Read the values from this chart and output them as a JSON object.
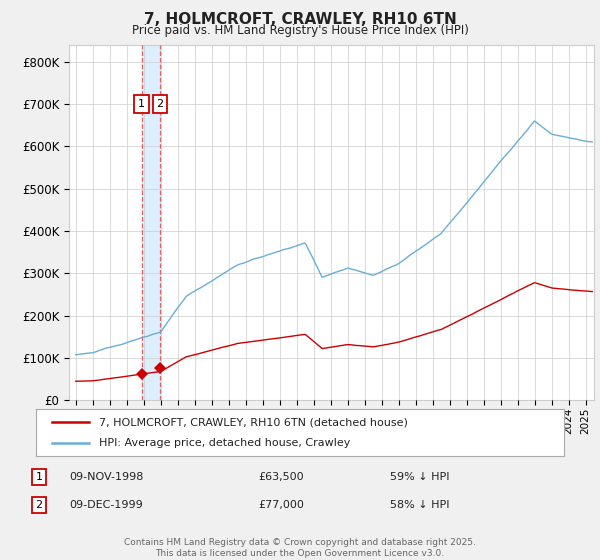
{
  "title": "7, HOLMCROFT, CRAWLEY, RH10 6TN",
  "subtitle": "Price paid vs. HM Land Registry's House Price Index (HPI)",
  "ylim": [
    0,
    840000
  ],
  "yticks": [
    0,
    100000,
    200000,
    300000,
    400000,
    500000,
    600000,
    700000,
    800000
  ],
  "ytick_labels": [
    "£0",
    "£100K",
    "£200K",
    "£300K",
    "£400K",
    "£500K",
    "£600K",
    "£700K",
    "£800K"
  ],
  "hpi_color": "#6aaed6",
  "property_color": "#cc0000",
  "shade_color": "#ddeeff",
  "purchase1_date": "09-NOV-1998",
  "purchase1_price": 63500,
  "purchase1_pct": "59% ↓ HPI",
  "purchase2_date": "09-DEC-1999",
  "purchase2_price": 77000,
  "purchase2_pct": "58% ↓ HPI",
  "legend_property": "7, HOLMCROFT, CRAWLEY, RH10 6TN (detached house)",
  "legend_hpi": "HPI: Average price, detached house, Crawley",
  "footnote1": "Contains HM Land Registry data © Crown copyright and database right 2025.",
  "footnote2": "This data is licensed under the Open Government Licence v3.0.",
  "background_color": "#f0f0f0",
  "plot_bg_color": "#ffffff",
  "grid_color": "#cccccc",
  "label1": "1",
  "label2": "2",
  "t1_x": 1998.875,
  "t1_y": 63500,
  "t2_x": 1999.958,
  "t2_y": 77000,
  "xlim_left": 1994.6,
  "xlim_right": 2025.5
}
